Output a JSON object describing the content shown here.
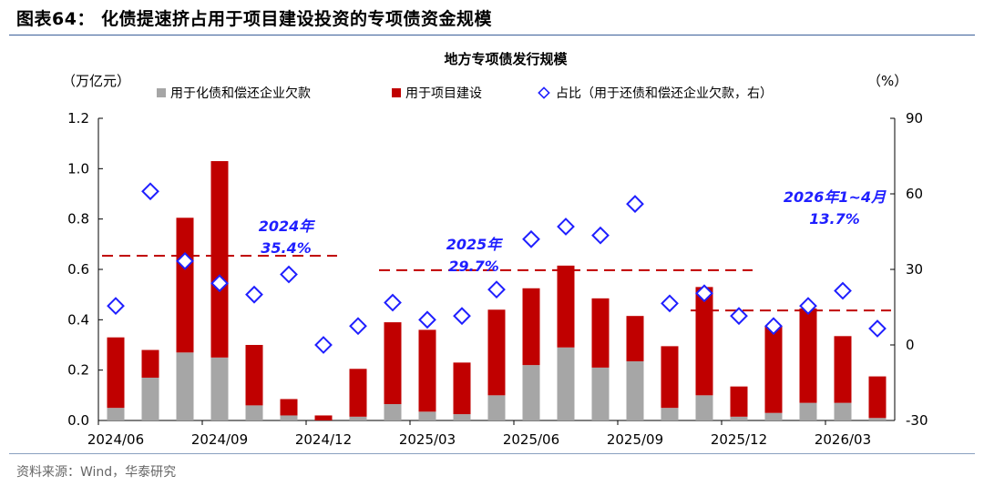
{
  "figure_title": "图表64：  化债提速挤占用于项目建设投资的专项债资金规模",
  "source": "资料来源：Wind，华泰研究",
  "colors": {
    "gray": "#a6a6a6",
    "red": "#c00000",
    "blue": "#1f1fff",
    "dash": "#c00000"
  },
  "chart_data": {
    "type": "bar",
    "title": "地方专项债发行规模",
    "left_unit": "（万亿元）",
    "right_unit": "（%）",
    "left_axis": {
      "min": 0,
      "max": 1.2,
      "ticks": [
        "0.0",
        "0.2",
        "0.4",
        "0.6",
        "0.8",
        "1.0",
        "1.2"
      ]
    },
    "right_axis": {
      "min": -30,
      "max": 90,
      "ticks": [
        "-30",
        "0",
        "30",
        "60",
        "90"
      ]
    },
    "x_tick_labels": [
      "2024/06",
      "2024/09",
      "2024/12",
      "2025/03",
      "2025/06",
      "2025/09",
      "2025/12",
      "2026/03"
    ],
    "x_tick_category_index": [
      0,
      3,
      6,
      9,
      12,
      15,
      18,
      21
    ],
    "categories": [
      "2024/06",
      "2024/07",
      "2024/08",
      "2024/09",
      "2024/10",
      "2024/11",
      "2024/12",
      "2025/01",
      "2025/02",
      "2025/03",
      "2025/04",
      "2025/05",
      "2025/06",
      "2025/07",
      "2025/08",
      "2025/09",
      "2025/10",
      "2025/11",
      "2025/12",
      "2026/01",
      "2026/02",
      "2026/03",
      "2026/04"
    ],
    "series": [
      {
        "name": "用于化债和偿还企业欠款",
        "kind": "stacked-bar",
        "values": [
          0.05,
          0.17,
          0.27,
          0.25,
          0.06,
          0.02,
          0.0,
          0.015,
          0.065,
          0.035,
          0.025,
          0.1,
          0.22,
          0.29,
          0.21,
          0.235,
          0.05,
          0.1,
          0.015,
          0.03,
          0.07,
          0.07,
          0.01
        ]
      },
      {
        "name": "用于项目建设",
        "kind": "stacked-bar",
        "values": [
          0.28,
          0.11,
          0.535,
          0.78,
          0.24,
          0.065,
          0.02,
          0.19,
          0.325,
          0.325,
          0.205,
          0.34,
          0.305,
          0.325,
          0.275,
          0.18,
          0.245,
          0.43,
          0.12,
          0.345,
          0.375,
          0.265,
          0.165
        ]
      },
      {
        "name": "占比（用于还债和偿还企业欠款，右）",
        "kind": "marker",
        "values": [
          15.5,
          61,
          33.3,
          24.5,
          20,
          28,
          0,
          7.5,
          16.8,
          10,
          11.5,
          22,
          42,
          47,
          43.5,
          56,
          16.5,
          20.5,
          11.5,
          7.5,
          15.5,
          21.5,
          6.5
        ]
      }
    ],
    "reference_lines": [
      {
        "label_year": "2024年",
        "label_value": "35.4%",
        "value": 35.4,
        "from": 0,
        "to": 6
      },
      {
        "label_year": "2025年",
        "label_value": "29.7%",
        "value": 29.7,
        "from": 8,
        "to": 18
      },
      {
        "label_year": "2026年1~4月",
        "label_value": "13.7%",
        "value": 13.7,
        "from": 17,
        "to": 22
      }
    ]
  }
}
